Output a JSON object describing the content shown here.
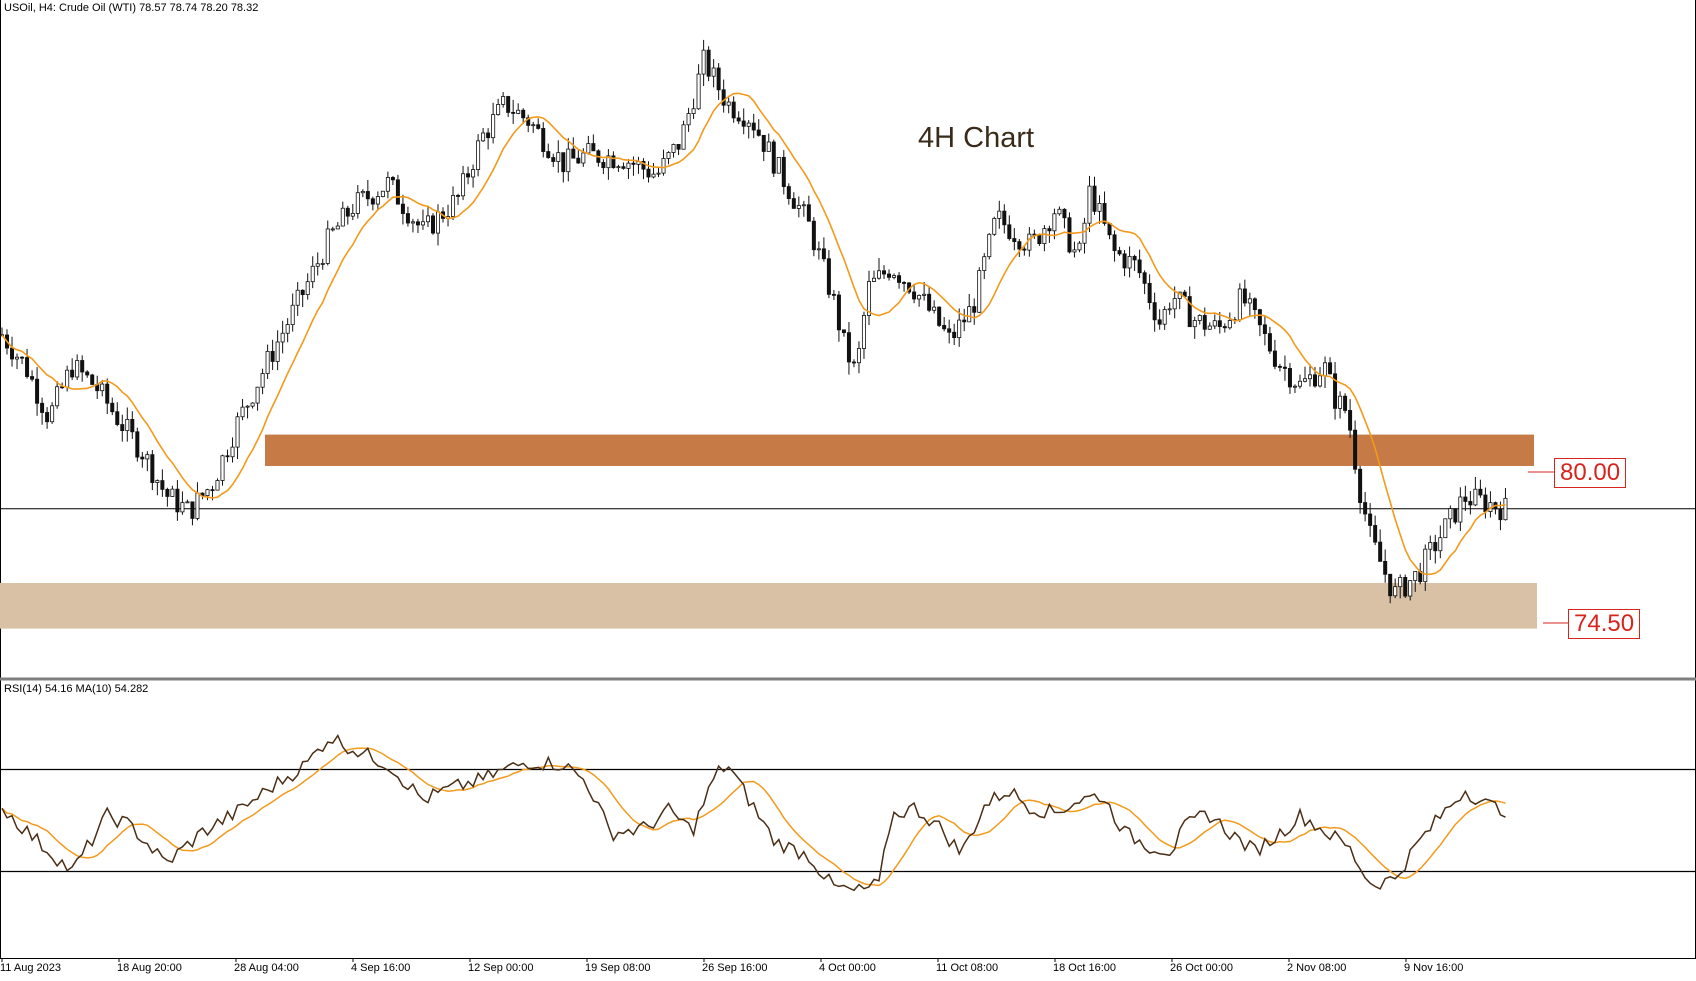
{
  "header": {
    "symbol_line": "USOil, H4:  Crude Oil (WTI)  78.57 78.74 78.20 78.32",
    "rsi_line": "RSI(14) 54.16 MA(10) 54.282"
  },
  "annotation_title": "4H Chart",
  "levels": {
    "resistance_label": "80.00",
    "support_label": "74.50"
  },
  "colors": {
    "candle": "#111111",
    "ma": "#f29a1c",
    "resistance_zone": "#c67a45",
    "support_zone": "#d8c1a5",
    "rsi_line": "#4a2e16",
    "rsi_ma": "#f29a1c",
    "label_red": "#d8241c"
  },
  "chart_data": [
    {
      "type": "candlestick",
      "title": "USOil, H4: Crude Oil (WTI)",
      "ohlc_last": {
        "open": 78.57,
        "high": 78.74,
        "low": 78.2,
        "close": 78.32
      },
      "x_tick_labels": [
        "11 Aug 2023",
        "18 Aug 20:00",
        "28 Aug 04:00",
        "4 Sep 16:00",
        "12 Sep 00:00",
        "19 Sep 08:00",
        "26 Sep 16:00",
        "4 Oct 00:00",
        "11 Oct 08:00",
        "18 Oct 16:00",
        "26 Oct 00:00",
        "2 Nov 08:00",
        "9 Nov 16:00"
      ],
      "ylim": [
        73.0,
        95.5
      ],
      "close_path": [
        [
          0,
          84.4
        ],
        [
          0.2,
          83.3
        ],
        [
          0.4,
          81.5
        ],
        [
          0.6,
          83.3
        ],
        [
          0.8,
          82.6
        ],
        [
          1.0,
          81.4
        ],
        [
          1.2,
          80.3
        ],
        [
          1.4,
          78.8
        ],
        [
          1.6,
          78.2
        ],
        [
          1.8,
          79.2
        ],
        [
          2.0,
          81.2
        ],
        [
          2.3,
          83.7
        ],
        [
          2.6,
          86.1
        ],
        [
          2.8,
          87.8
        ],
        [
          3.0,
          88.9
        ],
        [
          3.3,
          89.7
        ],
        [
          3.6,
          88.0
        ],
        [
          3.9,
          89.2
        ],
        [
          4.1,
          91.3
        ],
        [
          4.3,
          92.5
        ],
        [
          4.5,
          91.9
        ],
        [
          4.8,
          90.4
        ],
        [
          5.0,
          90.7
        ],
        [
          5.3,
          90.6
        ],
        [
          5.6,
          90.0
        ],
        [
          5.8,
          91.2
        ],
        [
          6.0,
          94.0
        ],
        [
          6.2,
          92.5
        ],
        [
          6.4,
          92.0
        ],
        [
          6.7,
          89.7
        ],
        [
          6.9,
          88.2
        ],
        [
          7.1,
          85.7
        ],
        [
          7.2,
          84.0
        ],
        [
          7.3,
          83.0
        ],
        [
          7.4,
          86.0
        ],
        [
          7.6,
          86.8
        ],
        [
          7.8,
          86.0
        ],
        [
          8.1,
          84.2
        ],
        [
          8.3,
          85.4
        ],
        [
          8.5,
          88.5
        ],
        [
          8.8,
          87.5
        ],
        [
          9.0,
          88.8
        ],
        [
          9.2,
          87.0
        ],
        [
          9.3,
          89.5
        ],
        [
          9.5,
          87.3
        ],
        [
          9.7,
          86.8
        ],
        [
          9.9,
          84.8
        ],
        [
          10.0,
          85.8
        ],
        [
          10.2,
          84.9
        ],
        [
          10.4,
          84.6
        ],
        [
          10.6,
          85.7
        ],
        [
          10.9,
          83.5
        ],
        [
          11.1,
          82.6
        ],
        [
          11.3,
          83.3
        ],
        [
          11.4,
          82.1
        ],
        [
          11.5,
          81.7
        ],
        [
          11.6,
          79.1
        ],
        [
          11.7,
          77.2
        ],
        [
          11.9,
          75.3
        ],
        [
          12.1,
          76.0
        ],
        [
          12.3,
          77.4
        ],
        [
          12.5,
          78.7
        ],
        [
          12.7,
          78.5
        ],
        [
          12.85,
          78.3
        ]
      ],
      "moving_average": "smoothed (orange)",
      "horizontal_line": 78.3,
      "zones": [
        {
          "label": "80.00",
          "low": 79.8,
          "high": 80.9
        },
        {
          "label": "74.50",
          "low": 74.1,
          "high": 75.7
        }
      ]
    },
    {
      "type": "line",
      "title": "RSI(14) 54.16 MA(10) 54.282",
      "series": [
        {
          "name": "RSI(14)"
        },
        {
          "name": "MA(10)"
        }
      ],
      "ylim": [
        0,
        100
      ],
      "levels": [
        70,
        30
      ],
      "rsi_path": [
        [
          0,
          55
        ],
        [
          0.3,
          42
        ],
        [
          0.6,
          30
        ],
        [
          0.9,
          52
        ],
        [
          1.1,
          48
        ],
        [
          1.4,
          33
        ],
        [
          1.7,
          45
        ],
        [
          2.0,
          53
        ],
        [
          2.3,
          63
        ],
        [
          2.6,
          72
        ],
        [
          2.8,
          83
        ],
        [
          3.0,
          78
        ],
        [
          3.3,
          72
        ],
        [
          3.6,
          58
        ],
        [
          3.8,
          62
        ],
        [
          4.1,
          66
        ],
        [
          4.3,
          70
        ],
        [
          4.5,
          73
        ],
        [
          4.8,
          72
        ],
        [
          5.0,
          65
        ],
        [
          5.2,
          45
        ],
        [
          5.5,
          47
        ],
        [
          5.7,
          54
        ],
        [
          5.9,
          46
        ],
        [
          6.1,
          68
        ],
        [
          6.2,
          72
        ],
        [
          6.4,
          57
        ],
        [
          6.6,
          42
        ],
        [
          6.9,
          36
        ],
        [
          7.1,
          24
        ],
        [
          7.3,
          22
        ],
        [
          7.5,
          25
        ],
        [
          7.6,
          52
        ],
        [
          7.8,
          55
        ],
        [
          8.0,
          48
        ],
        [
          8.2,
          37
        ],
        [
          8.4,
          56
        ],
        [
          8.6,
          62
        ],
        [
          8.8,
          55
        ],
        [
          9.0,
          53
        ],
        [
          9.2,
          58
        ],
        [
          9.4,
          60
        ],
        [
          9.6,
          45
        ],
        [
          9.8,
          40
        ],
        [
          10.0,
          38
        ],
        [
          10.1,
          47
        ],
        [
          10.3,
          53
        ],
        [
          10.5,
          45
        ],
        [
          10.7,
          38
        ],
        [
          10.9,
          44
        ],
        [
          11.1,
          52
        ],
        [
          11.3,
          46
        ],
        [
          11.5,
          40
        ],
        [
          11.7,
          25
        ],
        [
          11.9,
          27
        ],
        [
          12.1,
          41
        ],
        [
          12.3,
          52
        ],
        [
          12.5,
          62
        ],
        [
          12.7,
          56
        ],
        [
          12.85,
          54.16
        ]
      ]
    }
  ]
}
